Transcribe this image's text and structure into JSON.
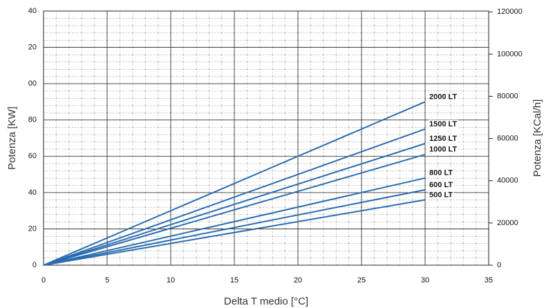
{
  "chart_data": {
    "type": "line",
    "xlabel": "Delta T medio [°C]",
    "ylabel": "Potenza [KW]",
    "y2label": "Potenza [KCal/h]",
    "xlim": [
      0,
      35
    ],
    "xticks": [
      0,
      5,
      10,
      15,
      20,
      25,
      30,
      35
    ],
    "ylim": [
      0,
      140
    ],
    "yticks": [
      0,
      20,
      40,
      60,
      80,
      {
        "value": 100,
        "label": "00"
      },
      {
        "value": 120,
        "label": "20"
      },
      {
        "value": 140,
        "label": "40"
      }
    ],
    "y2lim": [
      0,
      120400
    ],
    "y2ticks": [
      0,
      20000,
      40000,
      60000,
      80000,
      100000,
      120000
    ],
    "grid": true,
    "series": [
      {
        "name": "2000 LT",
        "color": "#2a6cb0",
        "x": [
          0,
          30
        ],
        "values": [
          0,
          90
        ]
      },
      {
        "name": "1500 LT",
        "color": "#2a6cb0",
        "x": [
          0,
          30
        ],
        "values": [
          0,
          75
        ]
      },
      {
        "name": "1250 LT",
        "color": "#2a6cb0",
        "x": [
          0,
          30
        ],
        "values": [
          0,
          67
        ]
      },
      {
        "name": "1000 LT",
        "color": "#2a6cb0",
        "x": [
          0,
          30
        ],
        "values": [
          0,
          61
        ]
      },
      {
        "name": "800 LT",
        "color": "#2a6cb0",
        "x": [
          0,
          30
        ],
        "values": [
          0,
          48
        ]
      },
      {
        "name": "600 LT",
        "color": "#2a6cb0",
        "x": [
          0,
          30
        ],
        "values": [
          0,
          41.5
        ]
      },
      {
        "name": "500 LT",
        "color": "#2a6cb0",
        "x": [
          0,
          30
        ],
        "values": [
          0,
          36
        ]
      }
    ]
  }
}
